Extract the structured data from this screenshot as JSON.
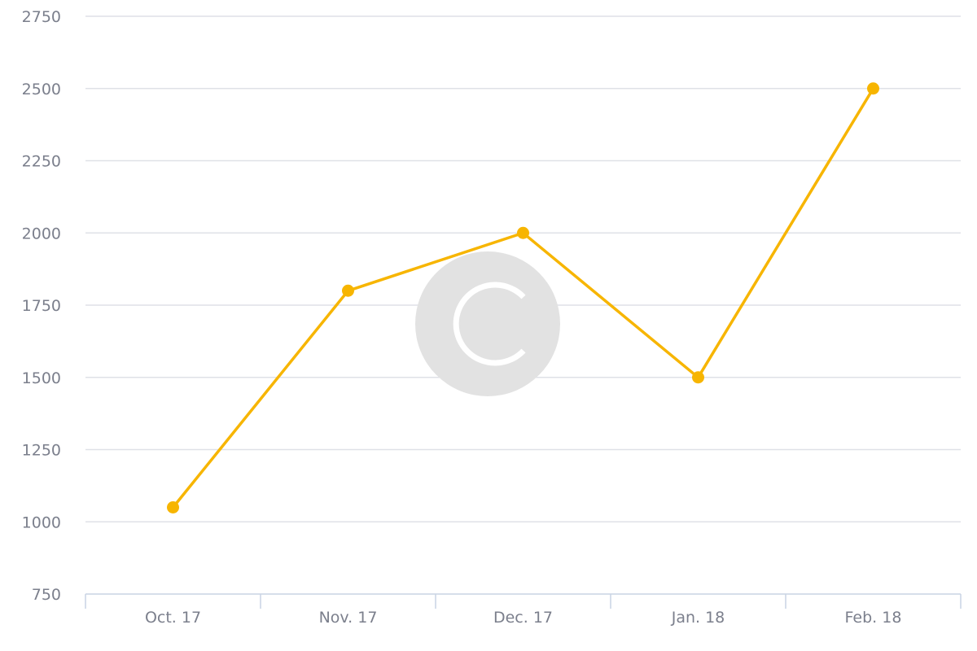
{
  "chart_data": {
    "type": "line",
    "categories": [
      "Oct. 17",
      "Nov. 17",
      "Dec. 17",
      "Jan. 18",
      "Feb. 18"
    ],
    "series": [
      {
        "values": [
          1050,
          1800,
          2000,
          1500,
          2500
        ]
      }
    ],
    "ylim": [
      750,
      2750
    ],
    "yticks": [
      750,
      1000,
      1250,
      1500,
      1750,
      2000,
      2250,
      2500,
      2750
    ],
    "ytick_labels": [
      "750",
      "1000",
      "1250",
      "1500",
      "1750",
      "2000",
      "2250",
      "2500",
      "2750"
    ],
    "grid": true,
    "colors": {
      "series": "#f7b500",
      "grid": "#dfe1e7",
      "axis": "#c9d3e4",
      "tick_label": "#7b7f8c",
      "watermark": "#e2e2e2"
    },
    "watermark_icon": "copyright-icon"
  }
}
